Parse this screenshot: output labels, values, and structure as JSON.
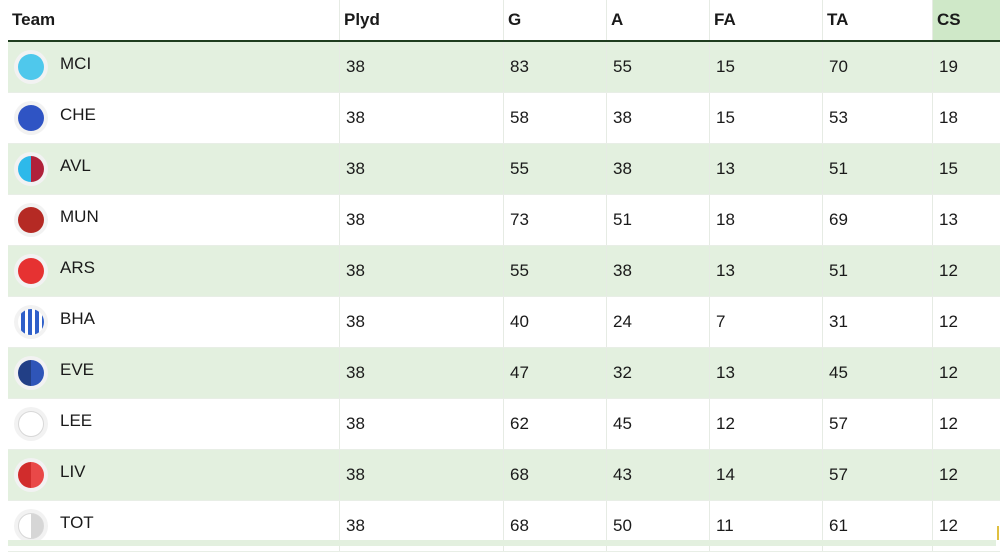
{
  "columns": [
    "Team",
    "Plyd",
    "G",
    "A",
    "FA",
    "TA",
    "CS"
  ],
  "rows": [
    {
      "team": "MCI",
      "badge": "solid",
      "colors": [
        "#4fc8ec"
      ],
      "plyd": "38",
      "g": "83",
      "a": "55",
      "fa": "15",
      "ta": "70",
      "cs": "19"
    },
    {
      "team": "CHE",
      "badge": "solid",
      "colors": [
        "#2f54c4"
      ],
      "plyd": "38",
      "g": "58",
      "a": "38",
      "fa": "15",
      "ta": "53",
      "cs": "18"
    },
    {
      "team": "AVL",
      "badge": "split",
      "colors": [
        "#2db9ea",
        "#b0213a"
      ],
      "plyd": "38",
      "g": "55",
      "a": "38",
      "fa": "13",
      "ta": "51",
      "cs": "15"
    },
    {
      "team": "MUN",
      "badge": "solid",
      "colors": [
        "#b52a24"
      ],
      "plyd": "38",
      "g": "73",
      "a": "51",
      "fa": "18",
      "ta": "69",
      "cs": "13"
    },
    {
      "team": "ARS",
      "badge": "solid",
      "colors": [
        "#e63232"
      ],
      "plyd": "38",
      "g": "55",
      "a": "38",
      "fa": "13",
      "ta": "51",
      "cs": "12"
    },
    {
      "team": "BHA",
      "badge": "stripes",
      "colors": [
        "#2e5fc9",
        "#ffffff"
      ],
      "plyd": "38",
      "g": "40",
      "a": "24",
      "fa": "7",
      "ta": "31",
      "cs": "12"
    },
    {
      "team": "EVE",
      "badge": "split",
      "colors": [
        "#223f86",
        "#2f55b8"
      ],
      "plyd": "38",
      "g": "47",
      "a": "32",
      "fa": "13",
      "ta": "45",
      "cs": "12"
    },
    {
      "team": "LEE",
      "badge": "solid",
      "colors": [
        "#ffffff"
      ],
      "plyd": "38",
      "g": "62",
      "a": "45",
      "fa": "12",
      "ta": "57",
      "cs": "12"
    },
    {
      "team": "LIV",
      "badge": "split",
      "colors": [
        "#d12c2c",
        "#e94848"
      ],
      "plyd": "38",
      "g": "68",
      "a": "43",
      "fa": "14",
      "ta": "57",
      "cs": "12"
    },
    {
      "team": "TOT",
      "badge": "split",
      "colors": [
        "#ffffff",
        "#d6d6d6"
      ],
      "plyd": "38",
      "g": "68",
      "a": "50",
      "fa": "11",
      "ta": "61",
      "cs": "12"
    }
  ]
}
